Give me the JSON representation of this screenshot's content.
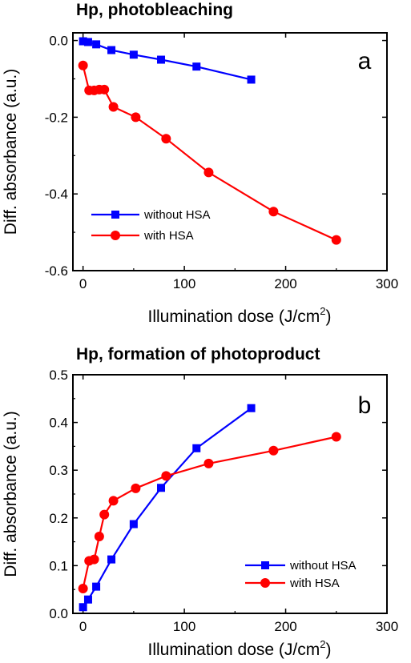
{
  "chart_data": [
    {
      "type": "line",
      "title": "Hp, photobleaching",
      "panel_label": "a",
      "xlabel": "Illumination dose (J/cm",
      "xlabel_sup": "2",
      "xlabel_close": ")",
      "ylabel": "Diff. absorbance (a.u.)",
      "xlim": [
        -10,
        300
      ],
      "ylim": [
        -0.6,
        0.02
      ],
      "xticks": [
        0,
        100,
        200,
        300
      ],
      "xtick_labels": [
        "0",
        "100",
        "200",
        "300"
      ],
      "yticks": [
        0.0,
        -0.2,
        -0.4,
        -0.6
      ],
      "ytick_labels": [
        "0.0",
        "-0.2",
        "-0.4",
        "-0.6"
      ],
      "legend_position": "bottom-left",
      "series": [
        {
          "name": "without HSA",
          "color": "#0000ff",
          "marker": "square",
          "x": [
            0,
            5,
            13,
            28,
            50,
            77,
            112,
            166
          ],
          "y": [
            -0.002,
            -0.004,
            -0.01,
            -0.025,
            -0.037,
            -0.05,
            -0.068,
            -0.102
          ]
        },
        {
          "name": "with HSA",
          "color": "#ff0000",
          "marker": "circle",
          "x": [
            0,
            6,
            11,
            16,
            21,
            30,
            52,
            82,
            124,
            188,
            250
          ],
          "y": [
            -0.065,
            -0.13,
            -0.13,
            -0.128,
            -0.128,
            -0.173,
            -0.2,
            -0.256,
            -0.344,
            -0.446,
            -0.52
          ]
        }
      ]
    },
    {
      "type": "line",
      "title": "Hp, formation of photoproduct",
      "panel_label": "b",
      "xlabel": "Illumination dose (J/cm",
      "xlabel_sup": "2",
      "xlabel_close": ")",
      "ylabel": "Diff. absorbance (a.u.)",
      "xlim": [
        -10,
        300
      ],
      "ylim": [
        0.0,
        0.5
      ],
      "xticks": [
        0,
        100,
        200,
        300
      ],
      "xtick_labels": [
        "0",
        "100",
        "200",
        "300"
      ],
      "yticks": [
        0.0,
        0.1,
        0.2,
        0.3,
        0.4,
        0.5
      ],
      "ytick_labels": [
        "0.0",
        "0.1",
        "0.2",
        "0.3",
        "0.4",
        "0.5"
      ],
      "legend_position": "bottom-right",
      "series": [
        {
          "name": "without HSA",
          "color": "#0000ff",
          "marker": "square",
          "x": [
            0,
            5,
            13,
            28,
            50,
            77,
            112,
            166
          ],
          "y": [
            0.013,
            0.029,
            0.056,
            0.113,
            0.187,
            0.263,
            0.346,
            0.43
          ]
        },
        {
          "name": "with HSA",
          "color": "#ff0000",
          "marker": "circle",
          "x": [
            0,
            6,
            11,
            16,
            21,
            30,
            52,
            82,
            124,
            188,
            250
          ],
          "y": [
            0.052,
            0.11,
            0.113,
            0.161,
            0.207,
            0.236,
            0.262,
            0.288,
            0.314,
            0.341,
            0.37
          ]
        }
      ]
    }
  ]
}
